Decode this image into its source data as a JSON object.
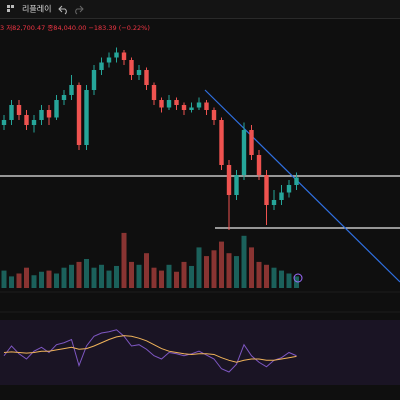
{
  "toolbar": {
    "replay": "리플레이"
  },
  "legend": {
    "ohlc": "3 저82,700.47 종84,040.00 −183.39 (−0.22%)"
  },
  "chart_data": {
    "type": "candlestick",
    "ylim": [
      0,
      100
    ],
    "up_color": "#26a69a",
    "down_color": "#ef5350",
    "candles": [
      [
        66,
        70,
        64,
        68
      ],
      [
        68,
        76,
        66,
        74
      ],
      [
        74,
        76,
        68,
        70
      ],
      [
        70,
        72,
        64,
        66
      ],
      [
        66,
        70,
        63,
        68
      ],
      [
        68,
        74,
        66,
        72
      ],
      [
        72,
        74,
        66,
        69
      ],
      [
        69,
        78,
        68,
        76
      ],
      [
        76,
        80,
        74,
        78
      ],
      [
        78,
        86,
        76,
        82
      ],
      [
        82,
        83,
        56,
        58
      ],
      [
        58,
        82,
        56,
        80
      ],
      [
        80,
        90,
        78,
        88
      ],
      [
        88,
        93,
        86,
        91
      ],
      [
        91,
        95,
        89,
        93
      ],
      [
        93,
        97,
        91,
        95
      ],
      [
        95,
        96,
        90,
        92
      ],
      [
        92,
        93,
        84,
        86
      ],
      [
        86,
        90,
        84,
        88
      ],
      [
        88,
        89,
        80,
        82
      ],
      [
        82,
        83,
        74,
        76
      ],
      [
        76,
        77,
        71,
        73
      ],
      [
        73,
        78,
        72,
        76
      ],
      [
        76,
        77,
        72,
        74
      ],
      [
        74,
        75,
        70,
        72
      ],
      [
        72,
        75,
        71,
        73
      ],
      [
        73,
        77,
        72,
        75
      ],
      [
        75,
        76,
        70,
        72
      ],
      [
        72,
        73,
        66,
        68
      ],
      [
        68,
        69,
        48,
        50
      ],
      [
        50,
        52,
        24,
        38
      ],
      [
        38,
        48,
        36,
        46
      ],
      [
        46,
        67,
        44,
        64
      ],
      [
        64,
        66,
        52,
        54
      ],
      [
        54,
        56,
        44,
        46
      ],
      [
        46,
        48,
        26,
        34
      ],
      [
        34,
        40,
        32,
        36
      ],
      [
        36,
        42,
        34,
        39
      ],
      [
        39,
        44,
        37,
        42
      ],
      [
        42,
        47,
        40,
        45
      ]
    ],
    "volume": [
      30,
      20,
      25,
      35,
      22,
      28,
      30,
      25,
      35,
      40,
      45,
      50,
      35,
      40,
      30,
      38,
      95,
      45,
      40,
      60,
      35,
      30,
      40,
      28,
      45,
      38,
      70,
      55,
      65,
      80,
      60,
      55,
      90,
      70,
      45,
      40,
      35,
      30,
      25,
      20
    ],
    "rsi": [
      45,
      60,
      48,
      40,
      52,
      58,
      50,
      62,
      65,
      70,
      30,
      60,
      75,
      80,
      82,
      85,
      75,
      60,
      62,
      55,
      45,
      40,
      50,
      48,
      45,
      48,
      52,
      46,
      40,
      25,
      20,
      32,
      62,
      45,
      35,
      28,
      38,
      42,
      50,
      45
    ],
    "rsi_ma": [
      50,
      51,
      50,
      49,
      50,
      52,
      52,
      54,
      56,
      58,
      55,
      56,
      60,
      65,
      70,
      74,
      76,
      75,
      72,
      68,
      62,
      56,
      52,
      50,
      48,
      47,
      48,
      48,
      47,
      42,
      38,
      35,
      38,
      40,
      40,
      38,
      38,
      40,
      42,
      44
    ],
    "rsi_color": "#7e57c2",
    "rsi_ma_color": "#f0b35a"
  }
}
